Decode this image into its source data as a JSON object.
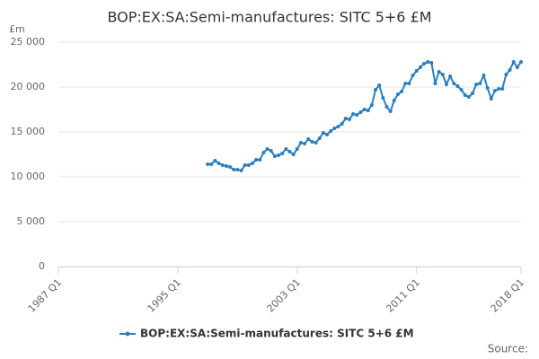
{
  "chart_data": {
    "type": "line",
    "title": "BOP:EX:SA:Semi-manufactures: SITC 5+6 £M",
    "y_label": "£m",
    "source": "Source:",
    "categories": [
      "1987 Q1",
      null,
      null,
      null,
      null,
      null,
      null,
      null,
      null,
      null,
      null,
      null,
      null,
      null,
      null,
      null,
      null,
      null,
      null,
      null,
      null,
      null,
      null,
      null,
      null,
      null,
      null,
      null,
      null,
      null,
      null,
      null,
      "1995 Q1",
      null,
      null,
      null,
      null,
      null,
      null,
      null,
      null,
      null,
      null,
      null,
      null,
      null,
      null,
      null,
      null,
      null,
      null,
      null,
      null,
      null,
      null,
      null,
      null,
      null,
      null,
      null,
      null,
      null,
      null,
      null,
      "2003 Q1",
      null,
      null,
      null,
      null,
      null,
      null,
      null,
      null,
      null,
      null,
      null,
      null,
      null,
      null,
      null,
      null,
      null,
      null,
      null,
      null,
      null,
      null,
      null,
      null,
      null,
      null,
      null,
      null,
      null,
      null,
      null,
      "2011 Q1",
      null,
      null,
      null,
      null,
      null,
      null,
      null,
      null,
      null,
      null,
      null,
      null,
      null,
      null,
      null,
      null,
      null,
      null,
      null,
      null,
      null,
      null,
      null,
      null,
      null,
      null,
      null,
      "2018 Q1"
    ],
    "series": [
      {
        "name": "BOP:EX:SA:Semi-manufactures: SITC 5+6 £M",
        "color": "#2b7fc0",
        "values": [
          null,
          null,
          null,
          null,
          null,
          null,
          null,
          null,
          null,
          null,
          null,
          null,
          null,
          null,
          null,
          null,
          null,
          null,
          null,
          null,
          null,
          null,
          null,
          null,
          null,
          null,
          null,
          null,
          null,
          null,
          null,
          null,
          null,
          null,
          null,
          null,
          null,
          null,
          null,
          null,
          11400,
          11400,
          11800,
          11500,
          11300,
          11200,
          11100,
          10800,
          10800,
          10700,
          11300,
          11300,
          11500,
          11900,
          11900,
          12700,
          13100,
          12900,
          12300,
          12400,
          12600,
          13100,
          12800,
          12500,
          13100,
          13800,
          13700,
          14200,
          13900,
          13800,
          14300,
          14900,
          14700,
          15100,
          15400,
          15600,
          15900,
          16500,
          16400,
          17000,
          16900,
          17200,
          17500,
          17400,
          18000,
          19700,
          20200,
          18800,
          17800,
          17300,
          18500,
          19200,
          19500,
          20400,
          20400,
          21300,
          21800,
          22200,
          22600,
          22800,
          22700,
          20400,
          21700,
          21400,
          20300,
          21200,
          20400,
          20100,
          19700,
          19100,
          18900,
          19300,
          20300,
          20400,
          21300,
          19900,
          18700,
          19600,
          19800,
          19800,
          21400,
          21900,
          22800,
          22200,
          22800
        ]
      }
    ],
    "ylim": [
      0,
      25000
    ],
    "yticks": [
      0,
      {
        "value": 5000,
        "label": "5 000"
      },
      {
        "value": 10000,
        "label": "10 000"
      },
      {
        "value": 15000,
        "label": "15 000"
      },
      {
        "value": 20000,
        "label": "20 000"
      },
      {
        "value": 25000,
        "label": "25 000"
      }
    ],
    "grid": true
  }
}
